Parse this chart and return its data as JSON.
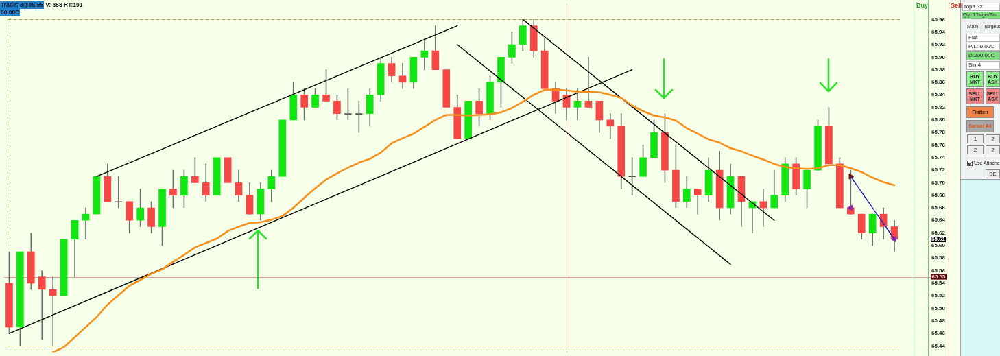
{
  "chart_data": {
    "type": "candlestick",
    "categories": [
      null,
      null,
      null,
      null,
      null,
      null,
      null,
      null,
      null,
      null,
      null,
      null,
      null,
      null,
      null,
      null,
      null,
      null,
      null,
      null,
      null,
      null,
      null,
      null,
      null,
      null,
      null,
      null,
      null,
      null,
      null,
      null,
      null,
      null,
      null,
      null,
      null,
      null,
      null,
      null,
      null,
      null,
      null,
      null,
      null,
      null,
      null,
      null,
      null,
      null,
      null,
      null,
      null,
      null,
      null,
      null,
      null,
      null,
      null,
      null,
      null,
      null,
      null,
      null,
      null,
      null,
      null,
      null,
      null,
      null,
      null,
      null,
      null,
      null,
      null,
      null,
      null,
      null,
      null,
      null,
      null,
      null
    ],
    "ohlc": [
      [
        65.54,
        65.59,
        65.46,
        65.47
      ],
      [
        65.47,
        65.59,
        65.44,
        65.59
      ],
      [
        65.59,
        65.62,
        65.53,
        65.54
      ],
      [
        65.55,
        65.56,
        65.45,
        65.53
      ],
      [
        65.53,
        65.55,
        65.44,
        65.52
      ],
      [
        65.52,
        65.61,
        65.52,
        65.61
      ],
      [
        65.61,
        65.64,
        65.55,
        65.64
      ],
      [
        65.64,
        65.66,
        65.61,
        65.65
      ],
      [
        65.65,
        65.71,
        65.65,
        65.71
      ],
      [
        65.71,
        65.73,
        65.67,
        65.67
      ],
      [
        65.67,
        65.71,
        65.66,
        65.67
      ],
      [
        65.67,
        65.67,
        65.62,
        65.64
      ],
      [
        65.64,
        65.69,
        65.63,
        65.66
      ],
      [
        65.66,
        65.67,
        65.62,
        65.63
      ],
      [
        65.63,
        65.69,
        65.6,
        65.69
      ],
      [
        65.69,
        65.72,
        65.66,
        65.68
      ],
      [
        65.68,
        65.72,
        65.66,
        65.71
      ],
      [
        65.71,
        65.74,
        65.7,
        65.7
      ],
      [
        65.7,
        65.73,
        65.67,
        65.68
      ],
      [
        65.68,
        65.74,
        65.68,
        65.74
      ],
      [
        65.74,
        65.74,
        65.7,
        65.7
      ],
      [
        65.7,
        65.72,
        65.67,
        65.68
      ],
      [
        65.68,
        65.7,
        65.65,
        65.65
      ],
      [
        65.65,
        65.7,
        65.64,
        65.69
      ],
      [
        65.69,
        65.72,
        65.67,
        65.71
      ],
      [
        65.71,
        65.8,
        65.71,
        65.8
      ],
      [
        65.8,
        65.86,
        65.8,
        65.84
      ],
      [
        65.84,
        65.85,
        65.8,
        65.82
      ],
      [
        65.82,
        65.85,
        65.82,
        65.84
      ],
      [
        65.84,
        65.88,
        65.83,
        65.83
      ],
      [
        65.83,
        65.84,
        65.8,
        65.81
      ],
      [
        65.81,
        65.85,
        65.8,
        65.81
      ],
      [
        65.81,
        65.83,
        65.78,
        65.81
      ],
      [
        65.81,
        65.85,
        65.79,
        65.84
      ],
      [
        65.84,
        65.9,
        65.83,
        65.89
      ],
      [
        65.89,
        65.9,
        65.86,
        65.87
      ],
      [
        65.87,
        65.89,
        65.85,
        65.86
      ],
      [
        65.86,
        65.9,
        65.85,
        65.9
      ],
      [
        65.9,
        65.93,
        65.88,
        65.91
      ],
      [
        65.91,
        65.95,
        65.88,
        65.88
      ],
      [
        65.88,
        65.88,
        65.82,
        65.82
      ],
      [
        65.82,
        65.84,
        65.77,
        65.77
      ],
      [
        65.77,
        65.83,
        65.77,
        65.83
      ],
      [
        65.83,
        65.85,
        65.79,
        65.81
      ],
      [
        65.81,
        65.87,
        65.8,
        65.86
      ],
      [
        65.86,
        65.9,
        65.82,
        65.9
      ],
      [
        65.9,
        65.94,
        65.89,
        65.92
      ],
      [
        65.92,
        65.96,
        65.91,
        65.95
      ],
      [
        65.95,
        65.96,
        65.9,
        65.91
      ],
      [
        65.91,
        65.93,
        65.85,
        65.85
      ],
      [
        65.85,
        65.86,
        65.81,
        65.83
      ],
      [
        65.84,
        65.85,
        65.8,
        65.82
      ],
      [
        65.82,
        65.85,
        65.8,
        65.83
      ],
      [
        65.83,
        65.9,
        65.82,
        65.82
      ],
      [
        65.83,
        65.83,
        65.78,
        65.8
      ],
      [
        65.8,
        65.81,
        65.77,
        65.79
      ],
      [
        65.79,
        65.81,
        65.69,
        65.71
      ],
      [
        65.71,
        65.74,
        65.68,
        65.71
      ],
      [
        65.71,
        65.76,
        65.71,
        65.74
      ],
      [
        65.74,
        65.8,
        65.74,
        65.78
      ],
      [
        65.78,
        65.81,
        65.7,
        65.72
      ],
      [
        65.72,
        65.76,
        65.66,
        65.67
      ],
      [
        65.67,
        65.71,
        65.66,
        65.69
      ],
      [
        65.69,
        65.69,
        65.65,
        65.68
      ],
      [
        65.68,
        65.74,
        65.67,
        65.72
      ],
      [
        65.72,
        65.75,
        65.64,
        65.66
      ],
      [
        65.66,
        65.73,
        65.65,
        65.71
      ],
      [
        65.71,
        65.71,
        65.63,
        65.67
      ],
      [
        65.66,
        65.67,
        65.62,
        65.67
      ],
      [
        65.67,
        65.69,
        65.63,
        65.66
      ],
      [
        65.66,
        65.72,
        65.66,
        65.68
      ],
      [
        65.68,
        65.74,
        65.67,
        65.73
      ],
      [
        65.73,
        65.74,
        65.68,
        65.69
      ],
      [
        65.69,
        65.72,
        65.66,
        65.72
      ],
      [
        65.72,
        65.8,
        65.72,
        65.79
      ],
      [
        65.79,
        65.82,
        65.73,
        65.73
      ],
      [
        65.73,
        65.74,
        65.66,
        65.66
      ],
      [
        65.66,
        65.72,
        65.65,
        65.65
      ],
      [
        65.65,
        65.65,
        65.61,
        65.62
      ],
      [
        65.62,
        65.65,
        65.6,
        65.65
      ],
      [
        65.65,
        65.66,
        65.61,
        65.63
      ],
      [
        65.63,
        65.64,
        65.59,
        65.61
      ]
    ],
    "colors": [
      "#f74848",
      "#12e612",
      "#f74848",
      "#f74848",
      "#f74848",
      "#12e612",
      "#12e612",
      "#12e612",
      "#12e612",
      "#f74848",
      "#505050",
      "#f74848",
      "#12e612",
      "#f74848",
      "#12e612",
      "#f74848",
      "#12e612",
      "#f74848",
      "#f74848",
      "#12e612",
      "#f74848",
      "#f74848",
      "#f74848",
      "#12e612",
      "#12e612",
      "#12e612",
      "#12e612",
      "#f74848",
      "#12e612",
      "#f74848",
      "#f74848",
      "#505050",
      "#505050",
      "#12e612",
      "#12e612",
      "#f74848",
      "#f74848",
      "#12e612",
      "#12e612",
      "#f74848",
      "#f74848",
      "#f74848",
      "#12e612",
      "#f74848",
      "#12e612",
      "#12e612",
      "#12e612",
      "#12e612",
      "#f74848",
      "#f74848",
      "#f74848",
      "#f74848",
      "#12e612",
      "#f74848",
      "#f74848",
      "#f74848",
      "#f74848",
      "#505050",
      "#12e612",
      "#12e612",
      "#f74848",
      "#f74848",
      "#12e612",
      "#f74848",
      "#12e612",
      "#f74848",
      "#12e612",
      "#f74848",
      "#12e612",
      "#f74848",
      "#12e612",
      "#12e612",
      "#f74848",
      "#12e612",
      "#12e612",
      "#f74848",
      "#f74848",
      "#f74848",
      "#f74848",
      "#12e612",
      "#f74848",
      "#f74848"
    ],
    "series": [
      {
        "type": "line",
        "color": "#f5901e",
        "values": [
          null,
          null,
          null,
          null,
          65.43,
          65.438,
          65.454,
          65.47,
          65.486,
          65.506,
          65.521,
          65.536,
          65.545,
          65.555,
          65.562,
          65.574,
          65.585,
          65.597,
          65.604,
          65.611,
          65.623,
          65.63,
          65.636,
          65.637,
          65.641,
          65.647,
          65.66,
          65.676,
          65.691,
          65.705,
          65.715,
          65.724,
          65.732,
          65.738,
          65.748,
          65.763,
          65.771,
          65.778,
          65.789,
          65.8,
          65.808,
          65.808,
          65.807,
          65.808,
          65.809,
          65.812,
          65.819,
          65.829,
          65.84,
          65.848,
          65.848,
          65.847,
          65.845,
          65.845,
          65.844,
          65.84,
          65.835,
          65.823,
          65.814,
          65.807,
          65.804,
          65.799,
          65.787,
          65.778,
          65.769,
          65.764,
          65.755,
          65.75,
          65.743,
          65.737,
          65.73,
          65.725,
          65.723,
          65.722,
          65.723,
          65.728,
          65.728,
          65.723,
          65.717,
          65.708,
          65.701,
          65.696
        ]
      },
      {
        "type": "line",
        "color": "#000000",
        "values": [
          null,
          null,
          null,
          null,
          null,
          null,
          null,
          null,
          65.71,
          null,
          null,
          null,
          null,
          null,
          null,
          null,
          null,
          null,
          null,
          null,
          null,
          null,
          null,
          null,
          null,
          null,
          null,
          null,
          null,
          null,
          null,
          null,
          null,
          null,
          null,
          null,
          null,
          null,
          null,
          null,
          null,
          65.95,
          null,
          null,
          null,
          null,
          null,
          null,
          null,
          null,
          null,
          null,
          null,
          null,
          null,
          null,
          null,
          null,
          null,
          null,
          null,
          null,
          null,
          null,
          null,
          null,
          null,
          null,
          null,
          null,
          null,
          null,
          null,
          null,
          null,
          null,
          null,
          null,
          null,
          null,
          null,
          null
        ]
      },
      {
        "type": "line",
        "color": "#000000",
        "values": [
          65.46,
          null,
          null,
          null,
          null,
          null,
          null,
          null,
          null,
          null,
          null,
          null,
          null,
          null,
          null,
          null,
          null,
          null,
          null,
          null,
          null,
          null,
          null,
          null,
          null,
          null,
          null,
          null,
          null,
          null,
          null,
          null,
          null,
          null,
          null,
          null,
          null,
          null,
          null,
          null,
          null,
          null,
          null,
          null,
          null,
          null,
          null,
          null,
          null,
          null,
          null,
          null,
          null,
          null,
          null,
          null,
          null,
          65.88,
          null,
          null,
          null,
          null,
          null,
          null,
          null,
          null,
          null,
          null,
          null,
          null,
          null,
          null,
          null,
          null,
          null,
          null,
          null,
          null,
          null,
          null,
          null,
          null
        ]
      },
      {
        "type": "line",
        "color": "#000000",
        "values": [
          null,
          null,
          null,
          null,
          null,
          null,
          null,
          null,
          null,
          null,
          null,
          null,
          null,
          null,
          null,
          null,
          null,
          null,
          null,
          null,
          null,
          null,
          null,
          null,
          null,
          null,
          null,
          null,
          null,
          null,
          null,
          null,
          null,
          null,
          null,
          null,
          null,
          null,
          null,
          null,
          null,
          null,
          null,
          null,
          null,
          null,
          null,
          65.96,
          null,
          null,
          null,
          null,
          null,
          null,
          null,
          null,
          null,
          null,
          null,
          null,
          null,
          null,
          null,
          null,
          null,
          null,
          null,
          null,
          null,
          null,
          65.64,
          null,
          null,
          null,
          null,
          null,
          null,
          null,
          null,
          null,
          null,
          null
        ]
      },
      {
        "type": "line",
        "color": "#000000",
        "values": [
          null,
          null,
          null,
          null,
          null,
          null,
          null,
          null,
          null,
          null,
          null,
          null,
          null,
          null,
          null,
          null,
          null,
          null,
          null,
          null,
          null,
          null,
          null,
          null,
          null,
          null,
          null,
          null,
          null,
          null,
          null,
          null,
          null,
          null,
          null,
          null,
          null,
          null,
          null,
          null,
          null,
          65.92,
          null,
          null,
          null,
          null,
          null,
          null,
          null,
          null,
          null,
          null,
          null,
          null,
          null,
          null,
          null,
          null,
          null,
          null,
          null,
          null,
          null,
          null,
          null,
          null,
          65.57,
          null,
          null,
          null,
          null,
          null,
          null,
          null,
          null,
          null,
          null,
          null,
          null,
          null,
          null,
          null
        ]
      },
      {
        "type": "line",
        "color": "#1c1cc8",
        "values": [
          null,
          null,
          null,
          null,
          null,
          null,
          null,
          null,
          null,
          null,
          null,
          null,
          null,
          null,
          null,
          null,
          null,
          null,
          null,
          null,
          null,
          null,
          null,
          null,
          null,
          null,
          null,
          null,
          null,
          null,
          null,
          null,
          null,
          null,
          null,
          null,
          null,
          null,
          null,
          null,
          null,
          null,
          null,
          null,
          null,
          null,
          null,
          null,
          null,
          null,
          null,
          null,
          null,
          null,
          null,
          null,
          null,
          null,
          null,
          null,
          null,
          null,
          null,
          null,
          null,
          null,
          null,
          null,
          null,
          null,
          null,
          null,
          null,
          null,
          null,
          null,
          null,
          65.71,
          null,
          null,
          null,
          65.61
        ]
      },
      {
        "type": "scatter",
        "marker": "triangle",
        "color": "#7a0c0c",
        "values": [
          null,
          null,
          null,
          null,
          null,
          null,
          null,
          null,
          null,
          null,
          null,
          null,
          null,
          null,
          null,
          null,
          null,
          null,
          null,
          null,
          null,
          null,
          null,
          null,
          null,
          null,
          null,
          null,
          null,
          null,
          null,
          null,
          null,
          null,
          null,
          null,
          null,
          null,
          null,
          null,
          null,
          null,
          null,
          null,
          null,
          null,
          null,
          null,
          null,
          null,
          null,
          null,
          null,
          null,
          null,
          null,
          null,
          null,
          null,
          null,
          null,
          null,
          null,
          null,
          null,
          null,
          null,
          null,
          null,
          null,
          null,
          null,
          null,
          null,
          null,
          null,
          null,
          65.71,
          null,
          null,
          null,
          null
        ]
      },
      {
        "type": "scatter",
        "marker": "triangle",
        "color": "#8e2ab0",
        "values": [
          null,
          null,
          null,
          null,
          null,
          null,
          null,
          null,
          null,
          null,
          null,
          null,
          null,
          null,
          null,
          null,
          null,
          null,
          null,
          null,
          null,
          null,
          null,
          null,
          null,
          null,
          null,
          null,
          null,
          null,
          null,
          null,
          null,
          null,
          null,
          null,
          null,
          null,
          null,
          null,
          null,
          null,
          null,
          null,
          null,
          null,
          null,
          null,
          null,
          null,
          null,
          null,
          null,
          null,
          null,
          null,
          null,
          null,
          null,
          null,
          null,
          null,
          null,
          null,
          null,
          null,
          null,
          null,
          null,
          null,
          null,
          null,
          null,
          null,
          null,
          null,
          null,
          65.66,
          null,
          null,
          null,
          65.61
        ]
      }
    ],
    "ylim": [
      65.43,
      65.985
    ],
    "yticks": [
      65.96,
      65.94,
      65.92,
      {
        "value": 65.9,
        "label": "65.90"
      },
      65.88,
      65.86,
      65.84,
      65.82,
      {
        "value": 65.8,
        "label": "65.80"
      },
      65.78,
      65.76,
      65.74,
      65.72,
      {
        "value": 65.7,
        "label": "65.70"
      },
      65.68,
      65.66,
      65.64,
      65.62,
      {
        "value": 65.6,
        "label": "65.60"
      },
      65.58,
      65.56,
      65.54,
      65.52,
      {
        "value": 65.5,
        "label": "65.50"
      },
      65.48,
      65.46,
      65.44
    ],
    "ref_lines": [
      {
        "axis": "y",
        "value": 65.96,
        "color": "#a8a032",
        "line_style": "dashed"
      },
      {
        "axis": "y",
        "value": 65.44,
        "color": "#a8a032",
        "line_style": "dashed"
      },
      {
        "axis": "y",
        "value": 65.55,
        "label": "65.55",
        "color": "#e49a9a"
      }
    ],
    "annotations": [
      "Trade: 3@65.55",
      "V: 858 RT:191",
      "00.00C",
      "Buy",
      "Sell",
      "ropa 3x",
      "Qty: 3 Target/Sto",
      "Main",
      "Targets",
      "Flat",
      "P/L: 0.00C",
      "D:200.00C",
      "Sim4",
      "BUY MKT",
      "BUY ASK",
      "SELL MKT",
      "SELL ASK",
      "Flatten",
      "Cancel All",
      "1",
      "2",
      "2",
      "2",
      "Use Attache",
      "BE",
      "65.61"
    ],
    "tick_labels": "y"
  }
}
